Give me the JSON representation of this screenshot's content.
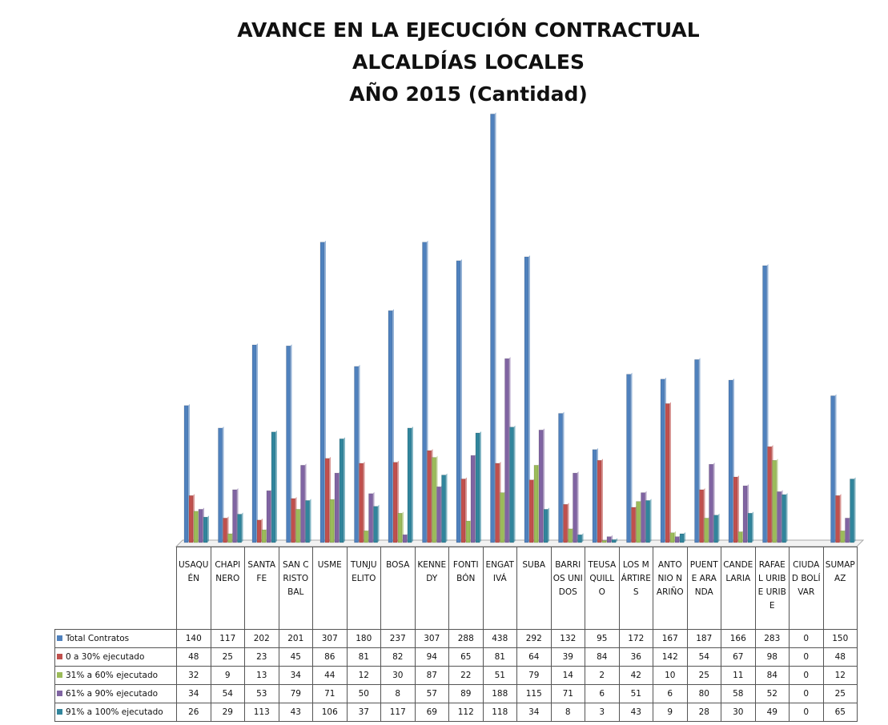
{
  "chart_data": {
    "type": "bar",
    "title": [
      "AVANCE EN LA EJECUCIÓN CONTRACTUAL",
      "ALCALDÍAS LOCALES",
      "AÑO 2015 (Cantidad)"
    ],
    "categories": [
      "USAQUÉN",
      "CHAPINERO",
      "SANTA FE",
      "SAN CRISTOBAL",
      "USME",
      "TUNJUELITO",
      "BOSA",
      "KENNEDY",
      "FONTIBÓN",
      "ENGATIVÁ",
      "SUBA",
      "BARRIOS UNIDOS",
      "TEUSAQUILLO",
      "LOS MÁRTIRES",
      "ANTONIO NARIÑO",
      "PUENTE ARANDA",
      "CANDELARIA",
      "RAFAEL URIBE URIBE",
      "CIUDAD BOLÍVAR",
      "SUMAPAZ"
    ],
    "series": [
      {
        "name": "Total Contratos",
        "color": "#4f81bd",
        "values": [
          140,
          117,
          202,
          201,
          307,
          180,
          237,
          307,
          288,
          438,
          292,
          132,
          95,
          172,
          167,
          187,
          166,
          283,
          0,
          150
        ]
      },
      {
        "name": "0 a 30% ejecutado",
        "color": "#c0504d",
        "values": [
          48,
          25,
          23,
          45,
          86,
          81,
          82,
          94,
          65,
          81,
          64,
          39,
          84,
          36,
          142,
          54,
          67,
          98,
          0,
          48
        ]
      },
      {
        "name": "31% a 60% ejecutado",
        "color": "#9bbb59",
        "values": [
          32,
          9,
          13,
          34,
          44,
          12,
          30,
          87,
          22,
          51,
          79,
          14,
          2,
          42,
          10,
          25,
          11,
          84,
          0,
          12
        ]
      },
      {
        "name": "61% a 90% ejecutado",
        "color": "#8064a2",
        "values": [
          34,
          54,
          53,
          79,
          71,
          50,
          8,
          57,
          89,
          188,
          115,
          71,
          6,
          51,
          6,
          80,
          58,
          52,
          0,
          25
        ]
      },
      {
        "name": "91% a 100% ejecutado",
        "color": "#31859c",
        "values": [
          26,
          29,
          113,
          43,
          106,
          37,
          117,
          69,
          112,
          118,
          34,
          8,
          3,
          43,
          9,
          28,
          30,
          49,
          0,
          65
        ]
      }
    ],
    "ylim": [
      0,
      440
    ]
  }
}
